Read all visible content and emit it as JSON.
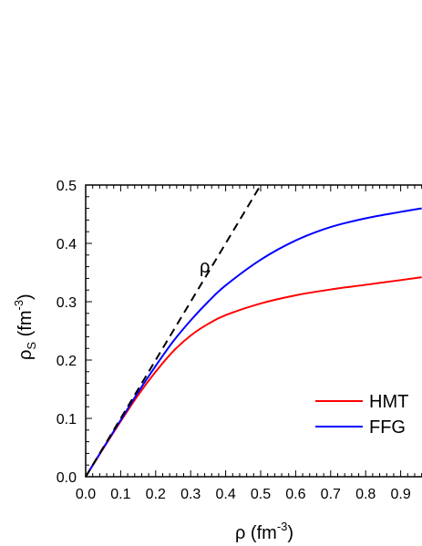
{
  "chart_data": {
    "type": "line",
    "title": "",
    "xlabel": {
      "main": "ρ (fm",
      "sup": "-3",
      "close": ")"
    },
    "ylabel": {
      "main": "ρ",
      "sub": "S",
      "mid": " (fm",
      "sup": "-3",
      "close": ")"
    },
    "xlim": [
      0,
      1.0
    ],
    "ylim": [
      0,
      0.5
    ],
    "x_ticks": [
      "0.0",
      "0.1",
      "0.2",
      "0.3",
      "0.4",
      "0.5",
      "0.6",
      "0.7",
      "0.8",
      "0.9"
    ],
    "y_ticks": [
      "0.0",
      "0.1",
      "0.2",
      "0.3",
      "0.4",
      "0.5"
    ],
    "x_tick_values": [
      0,
      0.1,
      0.2,
      0.3,
      0.4,
      0.5,
      0.6,
      0.7,
      0.8,
      0.9
    ],
    "y_tick_values": [
      0,
      0.1,
      0.2,
      0.3,
      0.4,
      0.5
    ],
    "annotation": "ρ",
    "legend_position": "lower-right",
    "series": [
      {
        "name": "HMT",
        "color": "#ff0000",
        "style": "solid",
        "x": [
          0,
          0.05,
          0.1,
          0.15,
          0.2,
          0.25,
          0.3,
          0.35,
          0.4,
          0.5,
          0.6,
          0.7,
          0.8,
          0.9,
          0.96
        ],
        "y": [
          0,
          0.048,
          0.095,
          0.14,
          0.18,
          0.215,
          0.242,
          0.262,
          0.277,
          0.297,
          0.311,
          0.321,
          0.329,
          0.337,
          0.342
        ]
      },
      {
        "name": "FFG",
        "color": "#0000ff",
        "style": "solid",
        "x": [
          0,
          0.05,
          0.1,
          0.15,
          0.2,
          0.25,
          0.3,
          0.35,
          0.4,
          0.5,
          0.6,
          0.7,
          0.8,
          0.9,
          0.96
        ],
        "y": [
          0,
          0.049,
          0.097,
          0.145,
          0.19,
          0.232,
          0.268,
          0.3,
          0.328,
          0.372,
          0.405,
          0.428,
          0.443,
          0.454,
          0.46
        ]
      },
      {
        "name": "",
        "color": "#000000",
        "style": "dashed",
        "x": [
          0,
          0.5
        ],
        "y": [
          0,
          0.5
        ]
      }
    ]
  }
}
